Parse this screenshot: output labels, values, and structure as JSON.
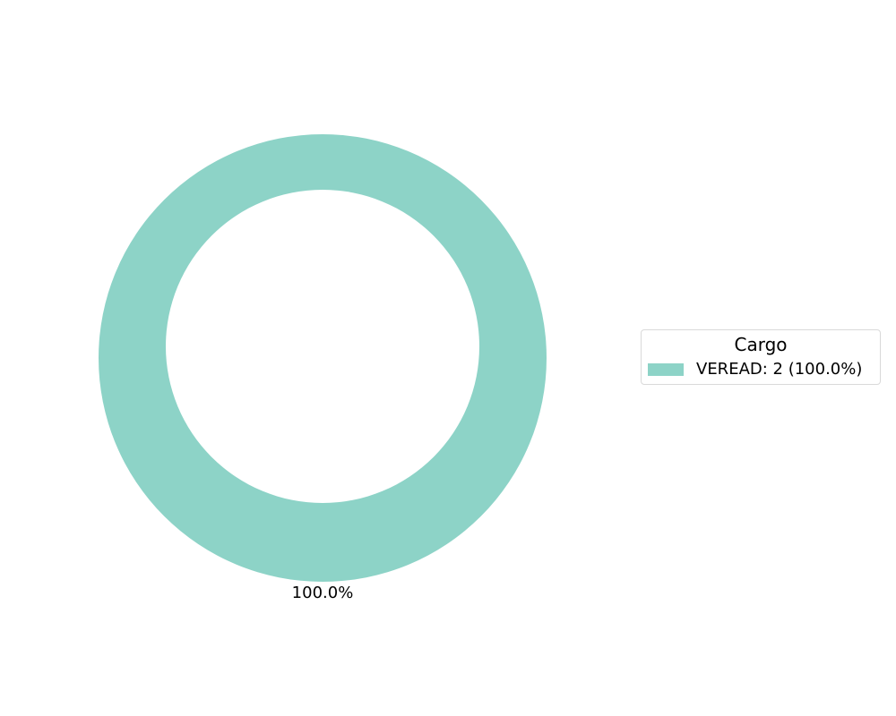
{
  "chart_data": {
    "type": "pie",
    "style": "donut",
    "title": "",
    "legend": {
      "title": "Cargo",
      "placement": "right",
      "entries": [
        "VEREAD: 2 (100.0%)"
      ]
    },
    "slices": [
      {
        "label": "VEREAD",
        "value": 2,
        "percent_label": "100.0%",
        "color": "#8dd3c7"
      }
    ]
  }
}
